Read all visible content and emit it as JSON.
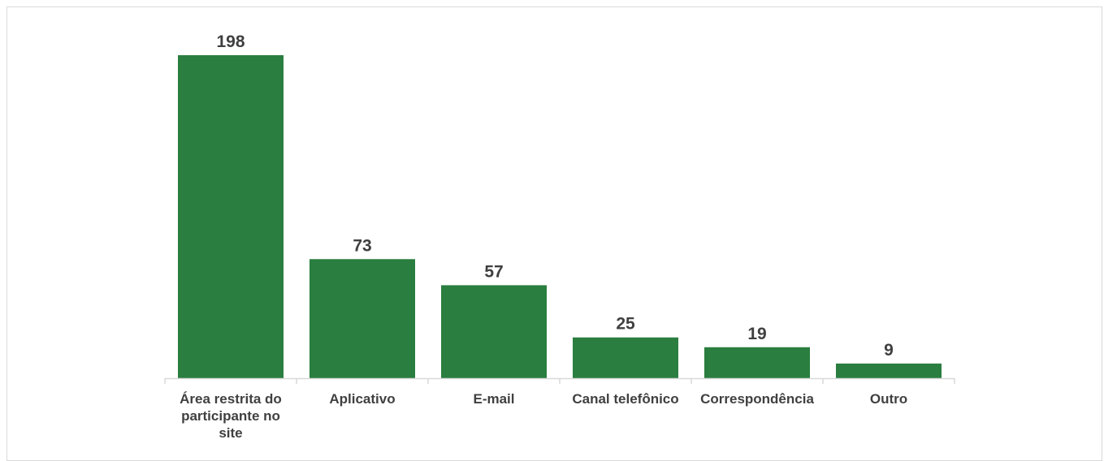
{
  "chart_data": {
    "type": "bar",
    "title": "",
    "xlabel": "",
    "ylabel": "",
    "categories": [
      "Área restrita do participante no site",
      "Aplicativo",
      "E-mail",
      "Canal telefônico",
      "Correspondência",
      "Outro"
    ],
    "values": [
      198,
      73,
      57,
      25,
      19,
      9
    ],
    "ylim": [
      0,
      198
    ],
    "grid": false,
    "legend": "none",
    "bar_color": "#2a7e3f",
    "label_color": "#404040",
    "axis_color": "#d9d9d9"
  }
}
